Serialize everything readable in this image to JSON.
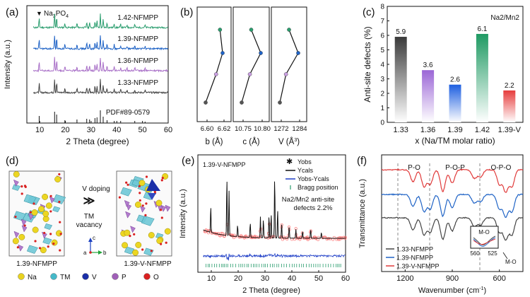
{
  "panels": {
    "a": {
      "tag": "(a)",
      "legend_marker": "▼",
      "legend_text": "Na",
      "legend_sub3": "3",
      "legend_text2": "PO",
      "legend_sub4": "4",
      "ylabel": "Intensity (a.u.)",
      "xlabel": "2 Theta (degree)",
      "xticks": [
        "10",
        "20",
        "30",
        "40",
        "50",
        "60"
      ],
      "pdf_label": "PDF#89-0579",
      "patterns": [
        {
          "label": "1.42-NFMPP",
          "color": "#2a9d6e"
        },
        {
          "label": "1.39-NFMPP",
          "color": "#1f63c6"
        },
        {
          "label": "1.36-NFMPP",
          "color": "#a86fc7"
        },
        {
          "label": "1.33-NFMPP",
          "color": "#444444"
        }
      ]
    },
    "b": {
      "tag": "(b)",
      "subplots": [
        {
          "xlabel": "b (Å)",
          "ticks": [
            "6.60",
            "6.62"
          ],
          "values": [
            6.594,
            6.61,
            6.62,
            6.616
          ]
        },
        {
          "xlabel": "c (Å)",
          "ticks": [
            "10.75",
            "10.80"
          ],
          "values": [
            10.74,
            10.77,
            10.81,
            10.775
          ]
        },
        {
          "xlabel": "V (Å",
          "xlabel_sup": "3",
          "xlabel_end": ")",
          "ticks": [
            "1272",
            "1284"
          ],
          "values": [
            1271,
            1275,
            1283,
            1277
          ]
        }
      ],
      "point_colors": [
        "#555555",
        "#c89ee0",
        "#1f63c6",
        "#2a9d6e"
      ]
    },
    "c": {
      "tag": "(c)",
      "ylabel": "Anti-site defects (%)",
      "xlabel": "x (Na/TM molar ratio)",
      "note": "Na2/Mn2",
      "yticks": [
        "0",
        "1",
        "2",
        "3",
        "4",
        "5",
        "6",
        "7",
        "8"
      ]
    },
    "d": {
      "tag": "(d)",
      "left_caption": "1.39-NFMPP",
      "right_caption": "1.39-V-NFMPP",
      "v_doping": "V doping",
      "tm_vacancy_1": "TM",
      "tm_vacancy_2": "vacancy",
      "axis_c": "c",
      "axis_a": "a",
      "axis_b": "b",
      "legend": [
        {
          "label": "Na",
          "color": "#e8d21f"
        },
        {
          "label": "TM",
          "color": "#45b9c9"
        },
        {
          "label": "V",
          "color": "#1a2fa8"
        },
        {
          "label": "P",
          "color": "#a060b8"
        },
        {
          "label": "O",
          "color": "#d92020"
        }
      ]
    },
    "e": {
      "tag": "(e)",
      "sample": "1.39-V-NFMPP",
      "ylabel": "Intensity (a.u.)",
      "xlabel": "2 Theta (degree)",
      "xticks": [
        "10",
        "20",
        "30",
        "40",
        "50",
        "60"
      ],
      "legend": [
        "Yobs",
        "Ycals",
        "Yobs-Ycals",
        "Bragg position"
      ],
      "annot_1": "Na2/Mn2 anti-site",
      "annot_2": "defects  2.2%"
    },
    "f": {
      "tag": "(f)",
      "ylabel": "Transmittance (a.u.)",
      "xlabel": "Wavenumber (cm",
      "xlabel_sup": "-1",
      "xlabel_end": ")",
      "xticks": [
        "1200",
        "900",
        "600"
      ],
      "regions": [
        "P-O",
        "P-O-P",
        "O-P-O"
      ],
      "inset_title": "M-O",
      "inset_ticks": [
        "560",
        "525"
      ],
      "mo_label": "M-O",
      "legend": [
        {
          "label": "1.33-NFMPP",
          "color": "#444444"
        },
        {
          "label": "1.39-NFMPP",
          "color": "#1f63c6"
        },
        {
          "label": "1.39-V-NFMPP",
          "color": "#e03a3a"
        }
      ]
    }
  },
  "chart_data": [
    {
      "type": "bar",
      "panel": "c",
      "title": "",
      "categories": [
        "1.33",
        "1.36",
        "1.39",
        "1.42",
        "1.39-V"
      ],
      "values": [
        5.9,
        3.6,
        2.6,
        6.1,
        2.2
      ],
      "colors": [
        "#3a3a3a",
        "#9b66d6",
        "#1d5fe0",
        "#1f9a63",
        "#e63c3c"
      ],
      "xlabel": "x (Na/TM molar ratio)",
      "ylabel": "Anti-site defects (%)",
      "ylim": [
        0,
        8
      ]
    },
    {
      "type": "line",
      "panel": "b",
      "title": "",
      "series": [
        {
          "name": "b (Å)",
          "values": [
            6.594,
            6.61,
            6.62,
            6.616
          ]
        },
        {
          "name": "c (Å)",
          "values": [
            10.74,
            10.77,
            10.81,
            10.775
          ]
        },
        {
          "name": "V (Å3)",
          "values": [
            1271,
            1275,
            1283,
            1277
          ]
        }
      ],
      "categories": [
        "1.33-NFMPP",
        "1.36-NFMPP",
        "1.39-NFMPP",
        "1.42-NFMPP"
      ]
    }
  ]
}
